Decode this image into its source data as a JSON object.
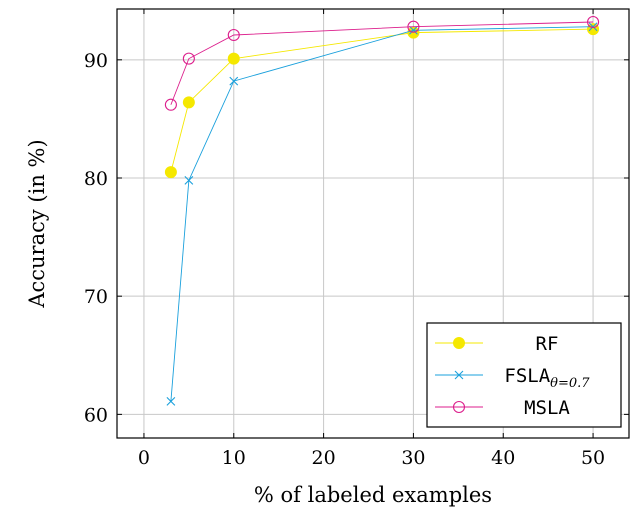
{
  "chart_data": {
    "type": "line",
    "xlabel": "% of labeled examples",
    "ylabel": "Accuracy (in %)",
    "xlim": [
      -3,
      54
    ],
    "ylim": [
      58,
      94.3
    ],
    "xticks": [
      0,
      10,
      20,
      30,
      40,
      50
    ],
    "yticks": [
      60,
      70,
      80,
      90
    ],
    "grid": true,
    "legend_position": "bottom-right",
    "series": [
      {
        "name": "RF",
        "label_main": "RF",
        "label_sub": "",
        "color": "#f5e800",
        "marker": "filled-circle",
        "x": [
          3,
          5,
          10,
          30,
          50
        ],
        "y": [
          80.5,
          86.4,
          90.1,
          92.3,
          92.6
        ]
      },
      {
        "name": "FSLA θ=0.7",
        "label_main": "FSLA",
        "label_sub": "θ=0.7",
        "color": "#1aa0dc",
        "marker": "x",
        "x": [
          3,
          5,
          10,
          30,
          50
        ],
        "y": [
          61.1,
          79.8,
          88.2,
          92.5,
          92.8
        ]
      },
      {
        "name": "MSLA",
        "label_main": "MSLA",
        "label_sub": "",
        "color": "#dc1e8c",
        "marker": "open-circle",
        "x": [
          3,
          5,
          10,
          30,
          50
        ],
        "y": [
          86.2,
          90.1,
          92.1,
          92.8,
          93.2
        ]
      }
    ]
  }
}
